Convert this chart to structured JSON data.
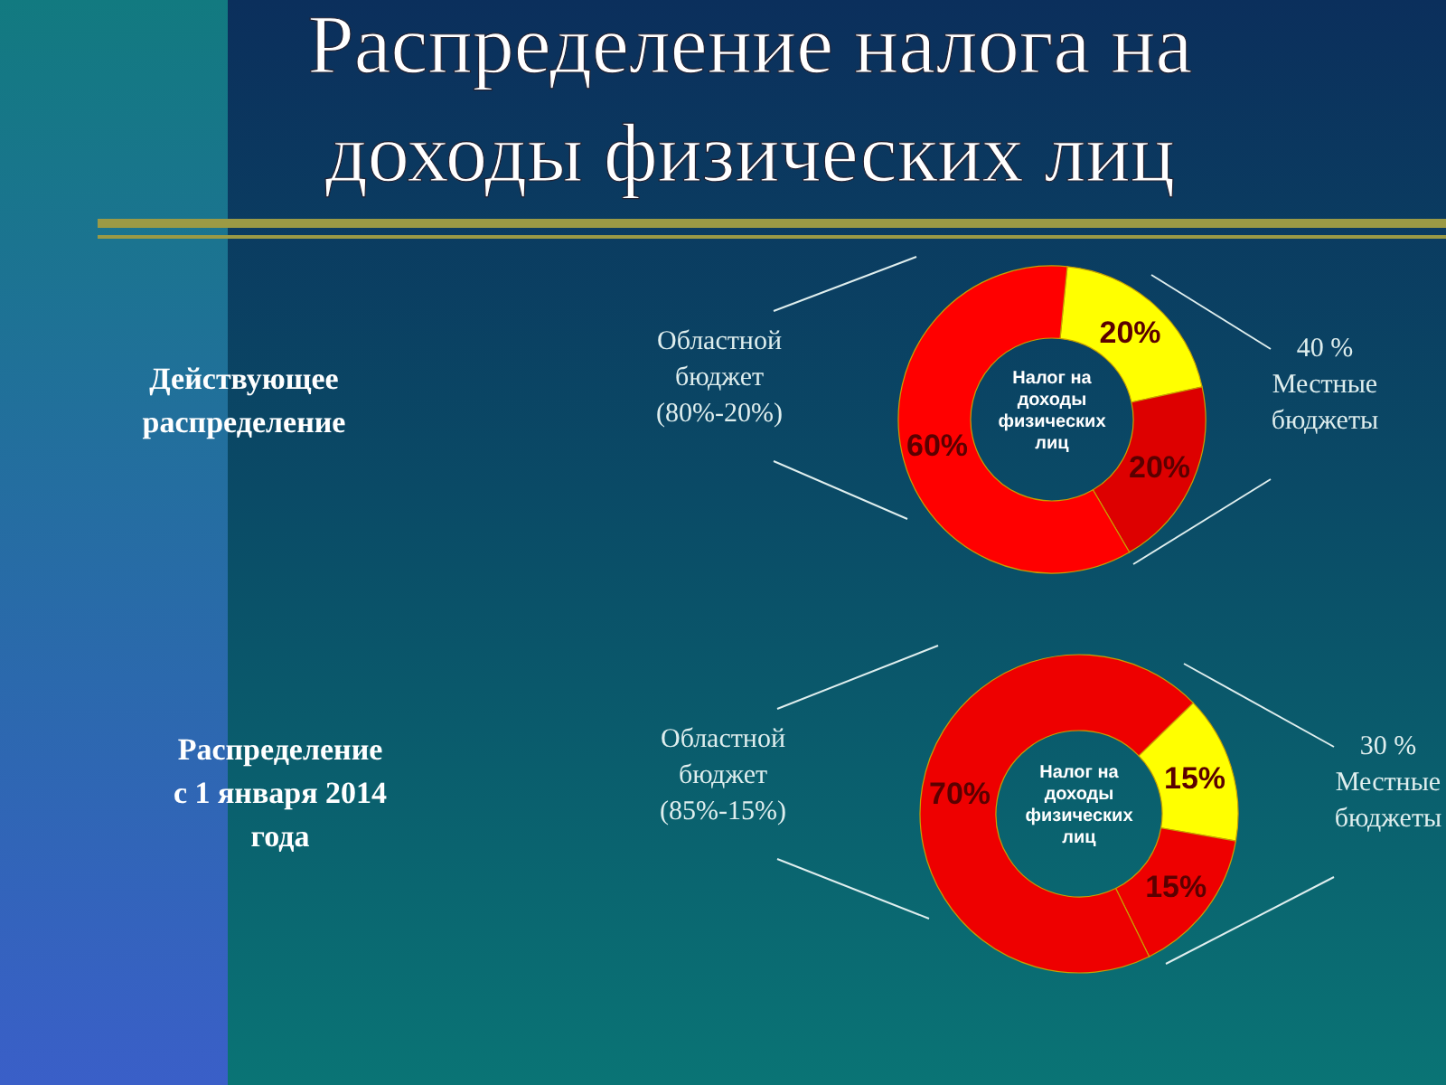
{
  "chart_data": [
    {
      "type": "donut",
      "title": "Распределение налога на\nдоходы физических лиц",
      "categories": [
        null,
        null,
        null
      ],
      "values": [
        20,
        20,
        60
      ],
      "colors": [
        "#ffff00",
        "#dd0000",
        "#ff0000"
      ],
      "value_labels": [
        "20%",
        "20%",
        "60%"
      ],
      "annotations": [
        "Налог на\nдоходы\nфизических\nлиц",
        "Областной\nбюджет\n(80%-20%)",
        "40 %\nМестные\nбюджеты",
        "Действующее\nраспределение"
      ]
    },
    {
      "type": "donut",
      "categories": [
        null,
        null,
        null
      ],
      "values": [
        15,
        15,
        70
      ],
      "colors": [
        "#ffff00",
        "#ee0000",
        "#ee0000"
      ],
      "value_labels": [
        "15%",
        "15%",
        "70%"
      ],
      "annotations": [
        "Налог на\nдоходы\nфизических\nлиц",
        "Областной\nбюджет\n(85%-15%)",
        "30 %\nМестные\nбюджеты",
        "Распределение\nс 1 января 2014\nгода"
      ]
    }
  ]
}
